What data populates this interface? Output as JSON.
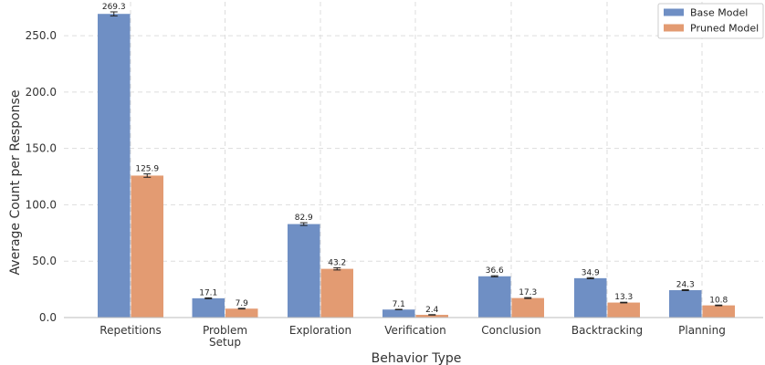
{
  "chart_data": {
    "type": "bar",
    "title": "",
    "xlabel": "Behavior Type",
    "ylabel": "Average Count per Response",
    "ylim": [
      0,
      280
    ],
    "yticks": [
      0,
      50,
      100,
      150,
      200,
      250
    ],
    "ytick_labels": [
      "0.0",
      "50.0",
      "100.0",
      "150.0",
      "200.0",
      "250.0"
    ],
    "grid": true,
    "legend_position": "top-right",
    "categories": [
      [
        "Repetitions"
      ],
      [
        "Problem",
        "Setup"
      ],
      [
        "Exploration"
      ],
      [
        "Verification"
      ],
      [
        "Conclusion"
      ],
      [
        "Backtracking"
      ],
      [
        "Planning"
      ]
    ],
    "series": [
      {
        "name": "Base Model",
        "color": "#6f8fc4",
        "values": [
          269.3,
          17.1,
          82.9,
          7.1,
          36.6,
          34.9,
          24.3
        ],
        "labels": [
          "269.3",
          "17.1",
          "82.9",
          "7.1",
          "36.6",
          "34.9",
          "24.3"
        ],
        "errors": [
          1.8,
          0.4,
          1.2,
          0.2,
          0.5,
          0.5,
          0.4
        ]
      },
      {
        "name": "Pruned Model",
        "color": "#e39b72",
        "values": [
          125.9,
          7.9,
          43.2,
          2.4,
          17.3,
          13.3,
          10.8
        ],
        "labels": [
          "125.9",
          "7.9",
          "43.2",
          "2.4",
          "17.3",
          "13.3",
          "10.8"
        ],
        "errors": [
          1.5,
          0.3,
          1.0,
          0.2,
          0.4,
          0.3,
          0.3
        ]
      }
    ]
  }
}
